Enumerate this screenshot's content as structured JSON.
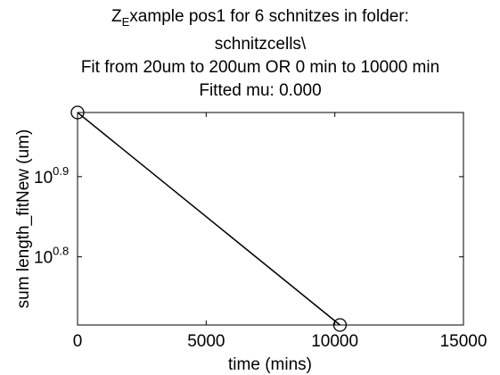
{
  "chart_data": {
    "type": "line",
    "title": {
      "line1_prefix": "Z",
      "line1_subscript": "E",
      "line1_rest": "xample pos1 for 6 schnitzes in folder:",
      "line2": "schnitzcells\\",
      "line3": "Fit from 20um to 200um OR 0 min to 10000 min",
      "line4": "Fitted mu: 0.000"
    },
    "xlabel": "time (mins)",
    "ylabel": "sum length_fitNew (um)",
    "xscale": "linear",
    "yscale": "log",
    "xlim": [
      0,
      15000
    ],
    "ylim_log10": [
      0.715,
      0.98
    ],
    "xticks": [
      {
        "value": 0,
        "label": "0"
      },
      {
        "value": 5000,
        "label": "5000"
      },
      {
        "value": 10000,
        "label": "10000"
      },
      {
        "value": 15000,
        "label": "15000"
      }
    ],
    "yticks": [
      {
        "log10": 0.8,
        "base": "10",
        "exponent": "0.8"
      },
      {
        "log10": 0.9,
        "base": "10",
        "exponent": "0.9"
      }
    ],
    "grid": false,
    "box": true,
    "series": [
      {
        "marker": "circle",
        "points": [
          {
            "x": 0,
            "log10_y": 0.98
          },
          {
            "x": 10200,
            "log10_y": 0.715
          }
        ]
      },
      {
        "line": "solid",
        "points": [
          {
            "x": 0,
            "log10_y": 0.98
          },
          {
            "x": 10200,
            "log10_y": 0.715
          }
        ]
      },
      {
        "line": "dotted",
        "points": [
          {
            "x": 0,
            "log10_y": 0.98
          },
          {
            "x": 15000,
            "log10_y": 0.98
          }
        ]
      }
    ],
    "colors": {
      "axes": "#000000",
      "line": "#000000",
      "background": "#ffffff"
    }
  }
}
